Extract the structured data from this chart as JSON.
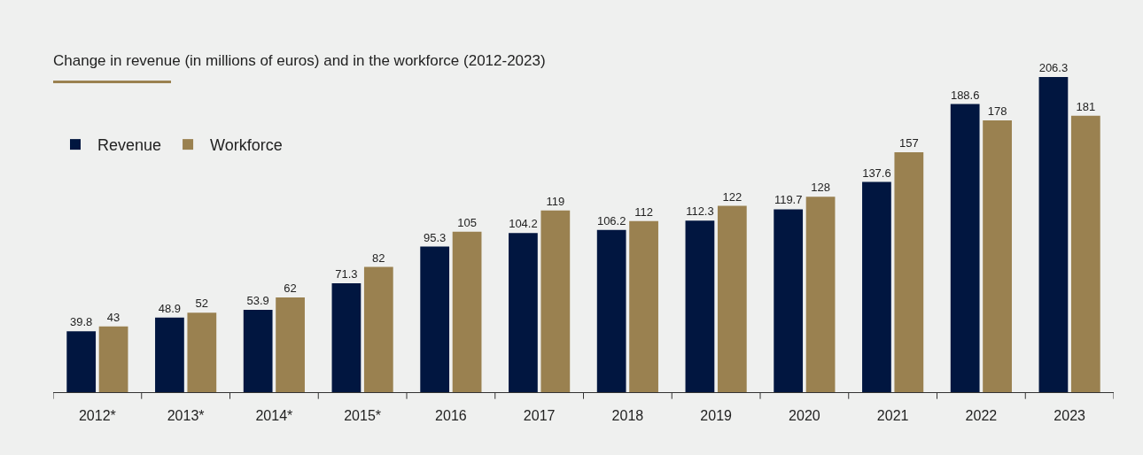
{
  "chart_data": {
    "type": "bar",
    "title": "Change in revenue (in millions of euros) and in the workforce (2012-2023)",
    "categories": [
      "2012*",
      "2013*",
      "2014*",
      "2015*",
      "2016",
      "2017",
      "2018",
      "2019",
      "2020",
      "2021",
      "2022",
      "2023"
    ],
    "series": [
      {
        "name": "Revenue",
        "color": "#011640",
        "values": [
          39.8,
          48.9,
          53.9,
          71.3,
          95.3,
          104.2,
          106.2,
          112.3,
          119.7,
          137.6,
          188.6,
          206.3
        ]
      },
      {
        "name": "Workforce",
        "color": "#9a8150",
        "values": [
          43,
          52,
          62,
          82,
          105,
          119,
          112,
          122,
          128,
          157,
          178,
          181
        ]
      }
    ],
    "data_labels": true,
    "legend": "top left"
  }
}
